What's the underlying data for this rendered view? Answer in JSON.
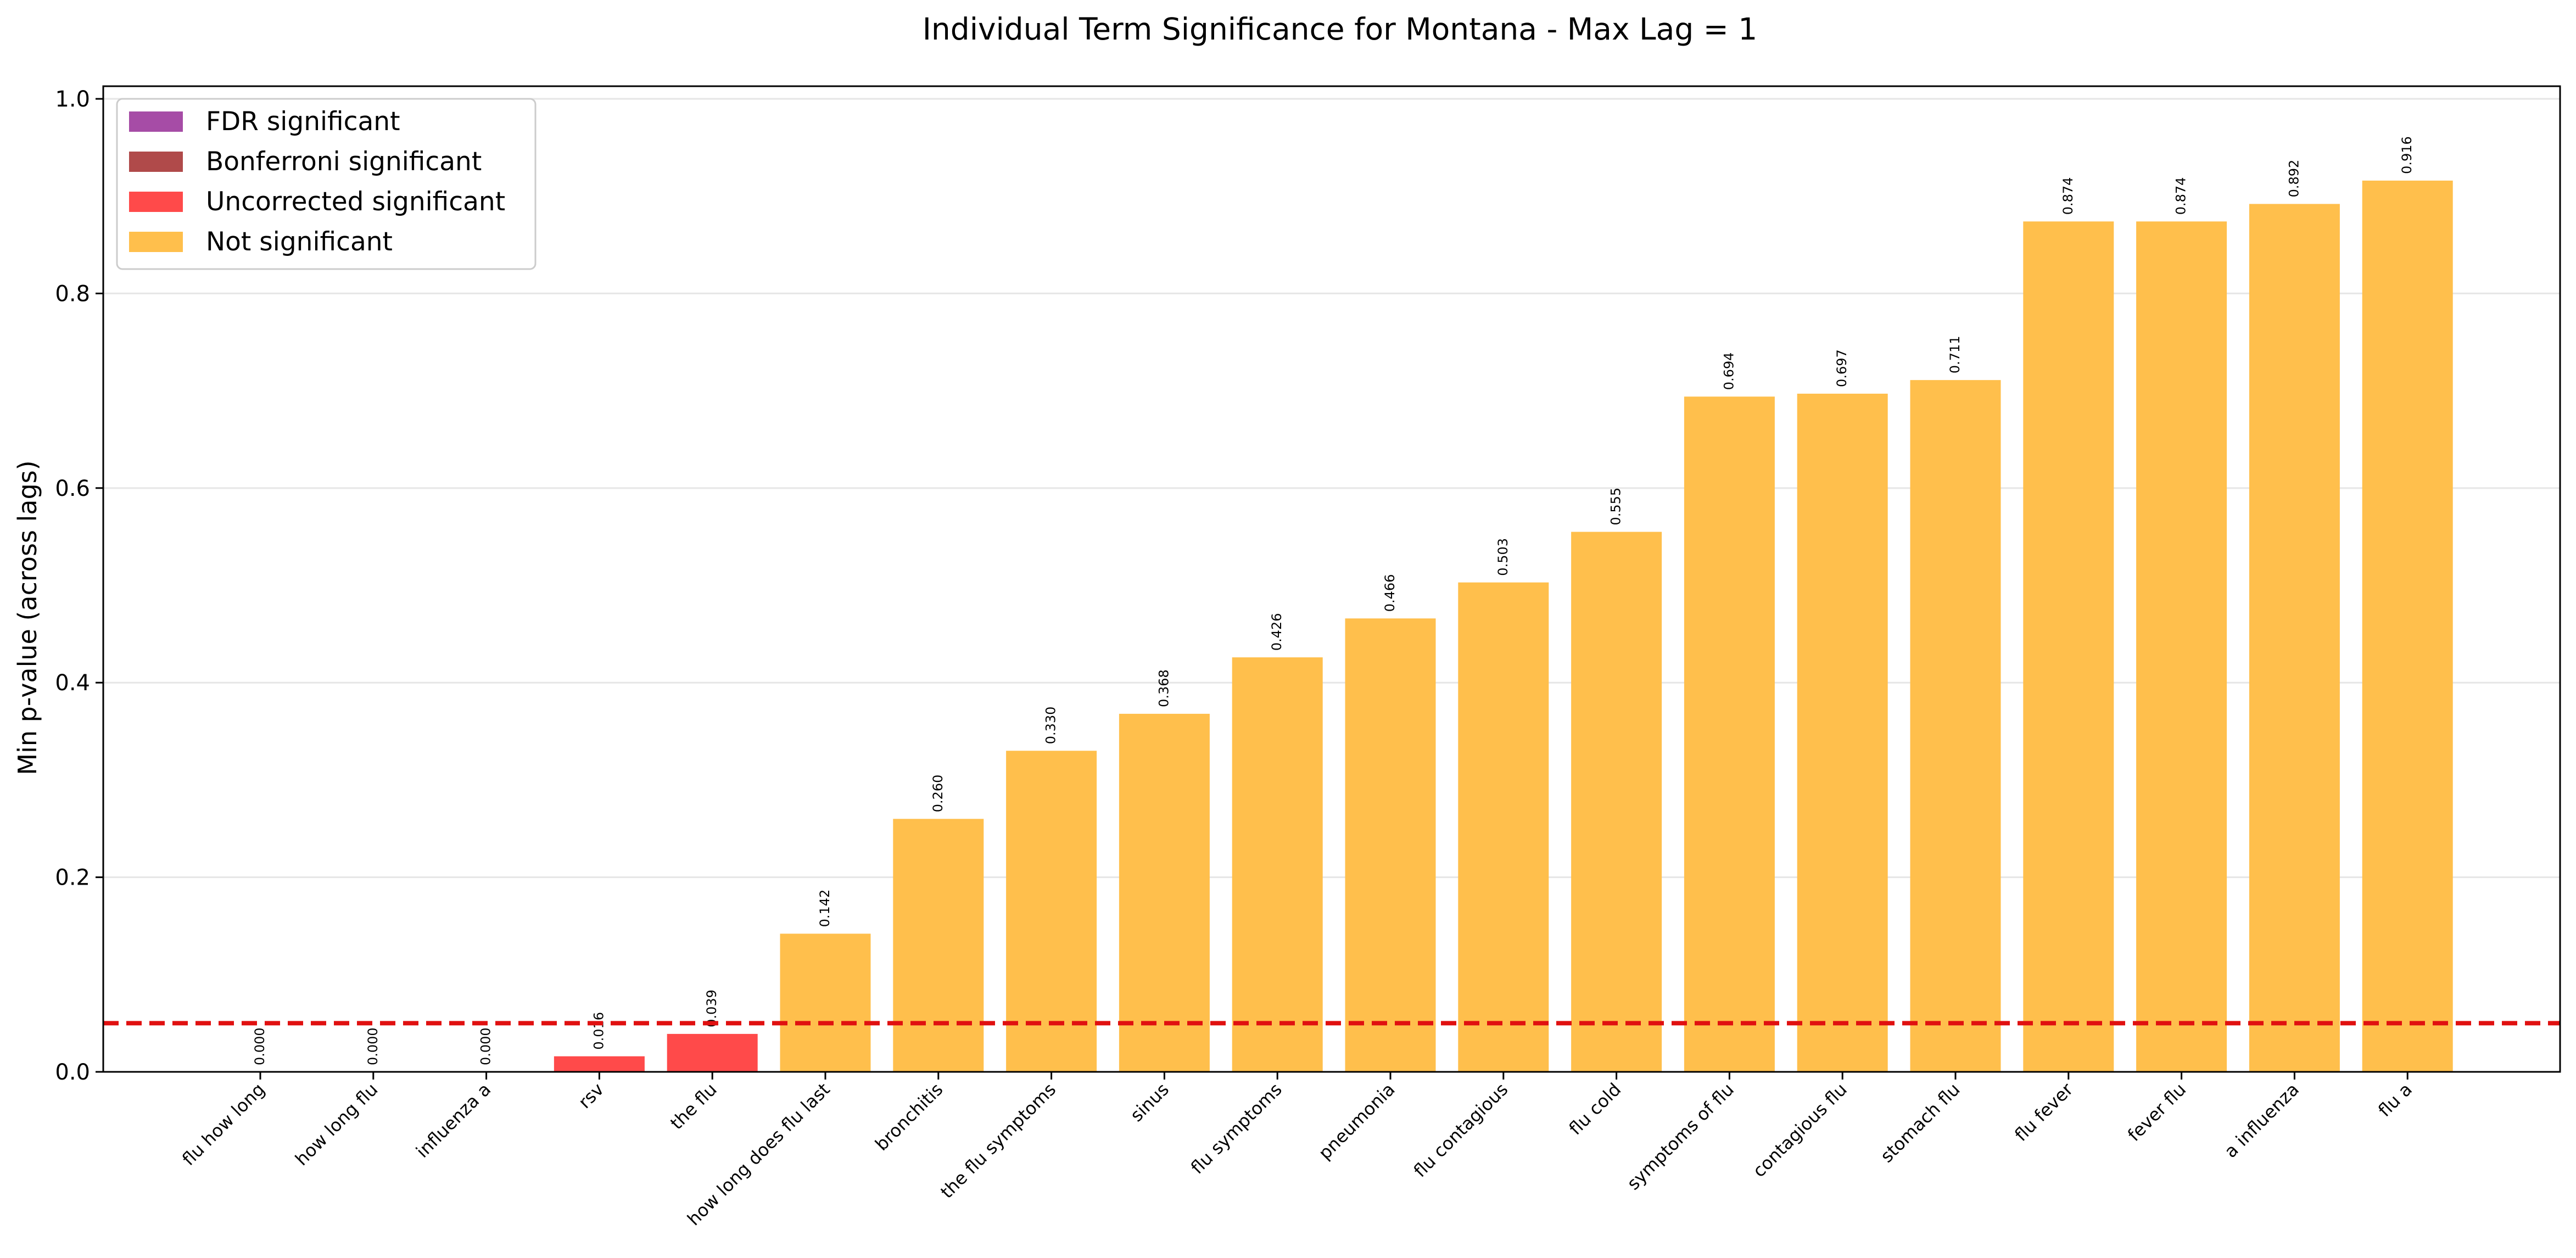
{
  "chart_data": {
    "type": "bar",
    "title": "Individual Term Significance for Montana - Max Lag = 1",
    "xlabel": "",
    "ylabel": "Min p-value (across lags)",
    "ylim": [
      0,
      1.0
    ],
    "yticks": [
      "0.0",
      "0.2",
      "0.4",
      "0.6",
      "0.8",
      "1.0"
    ],
    "grid": "y",
    "threshold": 0.05,
    "categories": [
      "flu how long",
      "how long flu",
      "influenza a",
      "rsv",
      "the flu",
      "how long does flu last",
      "bronchitis",
      "the flu symptoms",
      "sinus",
      "flu symptoms",
      "pneumonia",
      "flu contagious",
      "flu cold",
      "symptoms of flu",
      "contagious flu",
      "stomach flu",
      "flu fever",
      "fever flu",
      "a influenza",
      "flu a"
    ],
    "values": [
      0.0,
      0.0,
      0.0,
      0.016,
      0.039,
      0.142,
      0.26,
      0.33,
      0.368,
      0.426,
      0.466,
      0.503,
      0.555,
      0.694,
      0.697,
      0.711,
      0.874,
      0.874,
      0.892,
      0.916
    ],
    "value_labels": [
      "0.000",
      "0.000",
      "0.000",
      "0.016",
      "0.039",
      "0.142",
      "0.260",
      "0.330",
      "0.368",
      "0.426",
      "0.466",
      "0.503",
      "0.555",
      "0.694",
      "0.697",
      "0.711",
      "0.874",
      "0.874",
      "0.892",
      "0.916"
    ],
    "significance": [
      "fdr",
      "fdr",
      "fdr",
      "uncorrected",
      "uncorrected",
      "not",
      "not",
      "not",
      "not",
      "not",
      "not",
      "not",
      "not",
      "not",
      "not",
      "not",
      "not",
      "not",
      "not",
      "not"
    ],
    "colors": {
      "fdr": "#a64ca6",
      "bonferroni": "#b04a4a",
      "uncorrected": "#ff4a4a",
      "not": "#ffbf4c",
      "threshold": "#e01010",
      "grid": "#e6e6e6"
    },
    "legend": {
      "position": "top-left",
      "entries": [
        {
          "key": "fdr",
          "label": "FDR significant"
        },
        {
          "key": "bonferroni",
          "label": "Bonferroni significant"
        },
        {
          "key": "uncorrected",
          "label": "Uncorrected significant"
        },
        {
          "key": "not",
          "label": "Not significant"
        }
      ]
    }
  }
}
